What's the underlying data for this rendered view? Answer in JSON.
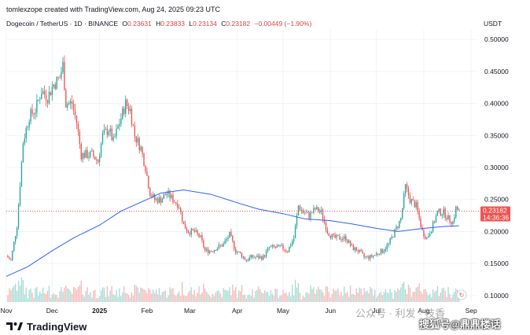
{
  "header": {
    "credit": "tomlexzope created with TradingView.com, Aug 24, 2025 09:23 UTC"
  },
  "legend": {
    "symbol": "Dogecoin / TetherUS · 1D · BINANCE",
    "open_label": "O",
    "open": "0.23631",
    "high_label": "H",
    "high": "0.23833",
    "low_label": "L",
    "low": "0.23134",
    "close_label": "C",
    "close": "0.23182",
    "change": "−0.00449 (−1.90%)"
  },
  "colors": {
    "up": "#26a69a",
    "down": "#ef5350",
    "ma": "#2962ff",
    "price_line": "#ef5350",
    "grid": "#f0f3fa"
  },
  "chart_data": {
    "type": "candlestick",
    "y_unit": "USDT",
    "y_ticks": [
      "0.50000",
      "0.45000",
      "0.40000",
      "0.35000",
      "0.30000",
      "0.25000",
      "0.20000",
      "0.15000",
      "0.10000"
    ],
    "ylim": [
      0.09,
      0.515
    ],
    "x_ticks": [
      "Nov",
      "Dec",
      "2025",
      "Feb",
      "Mar",
      "Apr",
      "May",
      "Jun",
      "Jul",
      "Aug",
      "Sep"
    ],
    "x_range": [
      "2024-11-01",
      "2025-09-05"
    ],
    "last_price": {
      "value": 0.23182,
      "label": "0.23182",
      "countdown": "14:36:36"
    },
    "price_path": [
      [
        "2024-11-01",
        0.162
      ],
      [
        "2024-11-04",
        0.155
      ],
      [
        "2024-11-08",
        0.21
      ],
      [
        "2024-11-12",
        0.34
      ],
      [
        "2024-11-16",
        0.38
      ],
      [
        "2024-11-20",
        0.39
      ],
      [
        "2024-11-24",
        0.42
      ],
      [
        "2024-11-28",
        0.41
      ],
      [
        "2024-12-02",
        0.43
      ],
      [
        "2024-12-06",
        0.44
      ],
      [
        "2024-12-08",
        0.46
      ],
      [
        "2024-12-10",
        0.4
      ],
      [
        "2024-12-14",
        0.4
      ],
      [
        "2024-12-17",
        0.37
      ],
      [
        "2024-12-20",
        0.32
      ],
      [
        "2024-12-24",
        0.32
      ],
      [
        "2024-12-27",
        0.32
      ],
      [
        "2024-12-31",
        0.31
      ],
      [
        "2025-01-03",
        0.35
      ],
      [
        "2025-01-07",
        0.36
      ],
      [
        "2025-01-10",
        0.34
      ],
      [
        "2025-01-14",
        0.37
      ],
      [
        "2025-01-18",
        0.4
      ],
      [
        "2025-01-21",
        0.39
      ],
      [
        "2025-01-24",
        0.35
      ],
      [
        "2025-01-28",
        0.33
      ],
      [
        "2025-01-31",
        0.3
      ],
      [
        "2025-02-03",
        0.26
      ],
      [
        "2025-02-06",
        0.25
      ],
      [
        "2025-02-10",
        0.25
      ],
      [
        "2025-02-14",
        0.26
      ],
      [
        "2025-02-18",
        0.25
      ],
      [
        "2025-02-22",
        0.24
      ],
      [
        "2025-02-25",
        0.21
      ],
      [
        "2025-02-28",
        0.2
      ],
      [
        "2025-03-04",
        0.2
      ],
      [
        "2025-03-08",
        0.19
      ],
      [
        "2025-03-11",
        0.17
      ],
      [
        "2025-03-15",
        0.17
      ],
      [
        "2025-03-19",
        0.175
      ],
      [
        "2025-03-23",
        0.18
      ],
      [
        "2025-03-27",
        0.195
      ],
      [
        "2025-03-31",
        0.17
      ],
      [
        "2025-04-03",
        0.165
      ],
      [
        "2025-04-07",
        0.155
      ],
      [
        "2025-04-10",
        0.16
      ],
      [
        "2025-04-14",
        0.16
      ],
      [
        "2025-04-18",
        0.16
      ],
      [
        "2025-04-22",
        0.175
      ],
      [
        "2025-04-26",
        0.175
      ],
      [
        "2025-04-30",
        0.175
      ],
      [
        "2025-05-04",
        0.17
      ],
      [
        "2025-05-08",
        0.19
      ],
      [
        "2025-05-11",
        0.24
      ],
      [
        "2025-05-14",
        0.23
      ],
      [
        "2025-05-18",
        0.225
      ],
      [
        "2025-05-22",
        0.235
      ],
      [
        "2025-05-26",
        0.23
      ],
      [
        "2025-05-30",
        0.2
      ],
      [
        "2025-06-03",
        0.19
      ],
      [
        "2025-06-07",
        0.19
      ],
      [
        "2025-06-11",
        0.19
      ],
      [
        "2025-06-15",
        0.175
      ],
      [
        "2025-06-19",
        0.17
      ],
      [
        "2025-06-23",
        0.16
      ],
      [
        "2025-06-27",
        0.16
      ],
      [
        "2025-07-01",
        0.165
      ],
      [
        "2025-07-05",
        0.17
      ],
      [
        "2025-07-09",
        0.18
      ],
      [
        "2025-07-13",
        0.2
      ],
      [
        "2025-07-17",
        0.22
      ],
      [
        "2025-07-20",
        0.27
      ],
      [
        "2025-07-23",
        0.25
      ],
      [
        "2025-07-27",
        0.24
      ],
      [
        "2025-07-31",
        0.2
      ],
      [
        "2025-08-03",
        0.19
      ],
      [
        "2025-08-07",
        0.21
      ],
      [
        "2025-08-10",
        0.23
      ],
      [
        "2025-08-14",
        0.23
      ],
      [
        "2025-08-17",
        0.22
      ],
      [
        "2025-08-20",
        0.215
      ],
      [
        "2025-08-22",
        0.236
      ],
      [
        "2025-08-24",
        0.23182
      ]
    ],
    "ma_path": [
      [
        "2024-11-01",
        0.13
      ],
      [
        "2024-11-15",
        0.145
      ],
      [
        "2024-12-01",
        0.17
      ],
      [
        "2024-12-15",
        0.19
      ],
      [
        "2025-01-01",
        0.21
      ],
      [
        "2025-01-15",
        0.232
      ],
      [
        "2025-02-01",
        0.25
      ],
      [
        "2025-02-10",
        0.26
      ],
      [
        "2025-02-25",
        0.265
      ],
      [
        "2025-03-15",
        0.258
      ],
      [
        "2025-04-01",
        0.245
      ],
      [
        "2025-04-15",
        0.235
      ],
      [
        "2025-05-01",
        0.228
      ],
      [
        "2025-05-15",
        0.22
      ],
      [
        "2025-06-01",
        0.217
      ],
      [
        "2025-06-15",
        0.212
      ],
      [
        "2025-07-01",
        0.205
      ],
      [
        "2025-07-15",
        0.2
      ],
      [
        "2025-08-01",
        0.205
      ],
      [
        "2025-08-15",
        0.208
      ],
      [
        "2025-08-24",
        0.209
      ]
    ]
  },
  "footer": {
    "brand": "TradingView"
  },
  "watermarks": {
    "line1": "公众号 · 利发 · 枝香",
    "line2": "搜狐号@鼎鼎楼话"
  }
}
